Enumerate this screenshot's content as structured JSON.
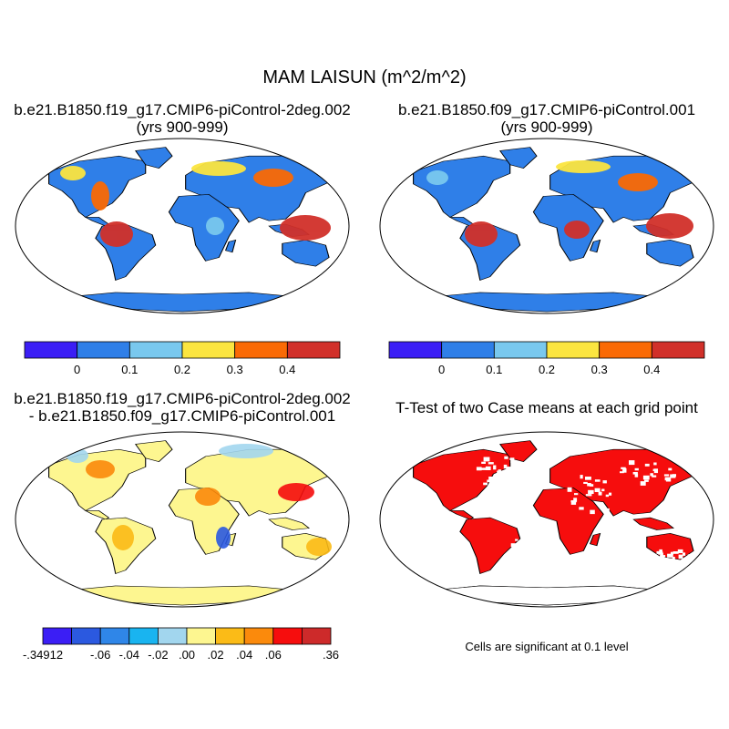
{
  "title": "MAM LAISUN (m^2/m^2)",
  "panels": [
    {
      "title_line1": "b.e21.B1850.f19_g17.CMIP6-piControl-2deg.002",
      "title_line2": "(yrs 900-999)"
    },
    {
      "title_line1": "b.e21.B1850.f09_g17.CMIP6-piControl.001",
      "title_line2": "(yrs 900-999)"
    },
    {
      "title_line1": "b.e21.B1850.f19_g17.CMIP6-piControl-2deg.002",
      "title_line2": "- b.e21.B1850.f09_g17.CMIP6-piControl.001"
    },
    {
      "title_line1": "T-Test of two Case means at each grid point"
    }
  ],
  "colorbar_top": {
    "colors": [
      "#3b1ef5",
      "#2f7fe8",
      "#79c8ee",
      "#fbe540",
      "#fa6a05",
      "#d1302a"
    ],
    "labels": [
      "0",
      "0.1",
      "0.2",
      "0.3",
      "0.4"
    ]
  },
  "colorbar_diff": {
    "colors": [
      "#3b1ef5",
      "#2b59e0",
      "#2f86e8",
      "#19b4f0",
      "#a2d6ee",
      "#fdf690",
      "#fbbb17",
      "#fb8a0c",
      "#f60d0d",
      "#cd2a2a"
    ],
    "labels": [
      "-.34912",
      "-.06",
      "-.04",
      "-.02",
      ".00",
      ".02",
      ".04",
      ".06",
      ".36"
    ]
  },
  "significance_note": "Cells are significant at 0.1 level",
  "map_colors": {
    "land_p1_p2": "#2f7fe8",
    "land_p3": "#fdf690",
    "land_p4": "#f60d0d",
    "coast": "#000000"
  }
}
